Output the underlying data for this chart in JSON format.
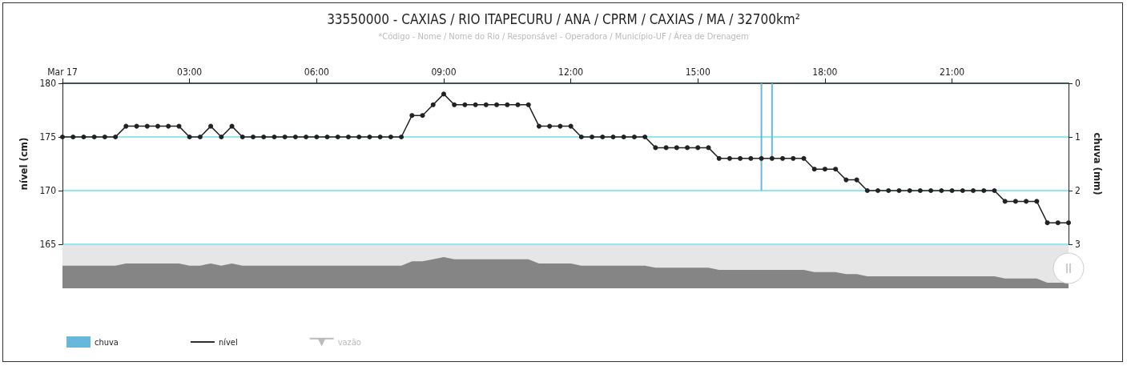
{
  "chart_data": {
    "type": "line",
    "title": "33550000 - CAXIAS / RIO ITAPECURU / ANA / CPRM / CAXIAS / MA / 32700km²",
    "subtitle": "*Código - Nome / Nome do Rio / Responsável - Operadora / Município-UF / Área de Drenagem",
    "ylabel": "nível (cm)",
    "y2label": "chuva (mm)",
    "xlim": [
      0,
      23.75
    ],
    "xticks": [
      {
        "value": 0,
        "label": "Mar 17"
      },
      {
        "value": 3,
        "label": "03:00"
      },
      {
        "value": 6,
        "label": "06:00"
      },
      {
        "value": 9,
        "label": "09:00"
      },
      {
        "value": 12,
        "label": "12:00"
      },
      {
        "value": 15,
        "label": "15:00"
      },
      {
        "value": 18,
        "label": "18:00"
      },
      {
        "value": 21,
        "label": "21:00"
      }
    ],
    "ylim": [
      165,
      180
    ],
    "yticks": [
      165,
      170,
      175,
      180
    ],
    "y2lim": [
      3,
      0
    ],
    "y2ticks": [
      0,
      1,
      2,
      3
    ],
    "grid": "y",
    "legend": "bottom left",
    "marker": "circle",
    "line_style": "solid",
    "series": [
      {
        "name": "chuva",
        "type": "bar",
        "axis": "y2",
        "color": "#68b8de",
        "x": [
          16.5,
          16.75
        ],
        "values": [
          2,
          1.4
        ]
      },
      {
        "name": "nível",
        "color": "#222222",
        "x": [
          0,
          0.25,
          0.5,
          0.75,
          1,
          1.25,
          1.5,
          1.75,
          2,
          2.25,
          2.5,
          2.75,
          3,
          3.25,
          3.5,
          3.75,
          4,
          4.25,
          4.5,
          4.75,
          5,
          5.25,
          5.5,
          5.75,
          6,
          6.25,
          6.5,
          6.75,
          7,
          7.25,
          7.5,
          7.75,
          8,
          8.25,
          8.5,
          8.75,
          9,
          9.25,
          9.5,
          9.75,
          10,
          10.25,
          10.5,
          10.75,
          11,
          11.25,
          11.5,
          11.75,
          12,
          12.25,
          12.5,
          12.75,
          13,
          13.25,
          13.5,
          13.75,
          14,
          14.25,
          14.5,
          14.75,
          15,
          15.25,
          15.5,
          15.75,
          16,
          16.25,
          16.5,
          16.75,
          17,
          17.25,
          17.5,
          17.75,
          18,
          18.25,
          18.5,
          18.75,
          19,
          19.25,
          19.5,
          19.75,
          20,
          20.25,
          20.5,
          20.75,
          21,
          21.25,
          21.5,
          21.75,
          22,
          22.25,
          22.5,
          22.75,
          23,
          23.25,
          23.5,
          23.75
        ],
        "values": [
          175,
          175,
          175,
          175,
          175,
          175,
          176,
          176,
          176,
          176,
          176,
          176,
          175,
          175,
          176,
          175,
          176,
          175,
          175,
          175,
          175,
          175,
          175,
          175,
          175,
          175,
          175,
          175,
          175,
          175,
          175,
          175,
          175,
          177,
          177,
          178,
          179,
          178,
          178,
          178,
          178,
          178,
          178,
          178,
          178,
          176,
          176,
          176,
          176,
          175,
          175,
          175,
          175,
          175,
          175,
          175,
          174,
          174,
          174,
          174,
          174,
          174,
          173,
          173,
          173,
          173,
          173,
          173,
          173,
          173,
          173,
          172,
          172,
          172,
          171,
          171,
          170,
          170,
          170,
          170,
          170,
          170,
          170,
          170,
          170,
          170,
          170,
          170,
          170,
          169,
          169,
          169,
          169,
          167,
          167,
          167
        ]
      },
      {
        "name": "vazão",
        "type": "line",
        "color": "#bbbbbb",
        "marker": "triangle"
      }
    ]
  }
}
